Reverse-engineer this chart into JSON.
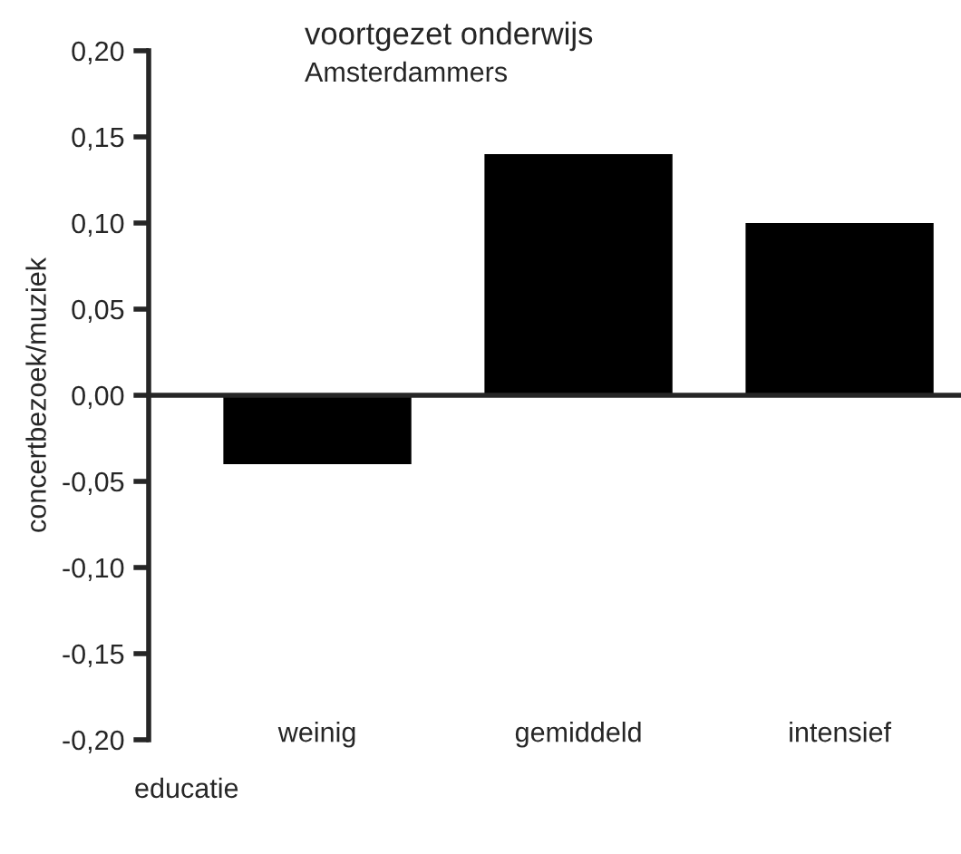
{
  "chart_data": {
    "type": "bar",
    "title": "voortgezet onderwijs",
    "subtitle": "Amsterdammers",
    "xlabel": "educatie",
    "ylabel": "concertbezoek/muziek",
    "categories": [
      "weinig",
      "gemiddeld",
      "intensief"
    ],
    "values": [
      -0.04,
      0.14,
      0.1
    ],
    "color": "#000000",
    "ylim": [
      -0.2,
      0.2
    ],
    "yticks": [
      {
        "value": -0.2,
        "label": "-0,20"
      },
      {
        "value": -0.15,
        "label": "-0,15"
      },
      {
        "value": -0.1,
        "label": "-0,10"
      },
      {
        "value": -0.05,
        "label": "-0,05"
      },
      {
        "value": 0,
        "label": "0,00"
      },
      {
        "value": 0.05,
        "label": "0,05"
      },
      {
        "value": 0.1,
        "label": "0,10"
      },
      {
        "value": 0.15,
        "label": "0,15"
      },
      {
        "value": 0.2,
        "label": "0,20"
      }
    ],
    "legend": false
  }
}
